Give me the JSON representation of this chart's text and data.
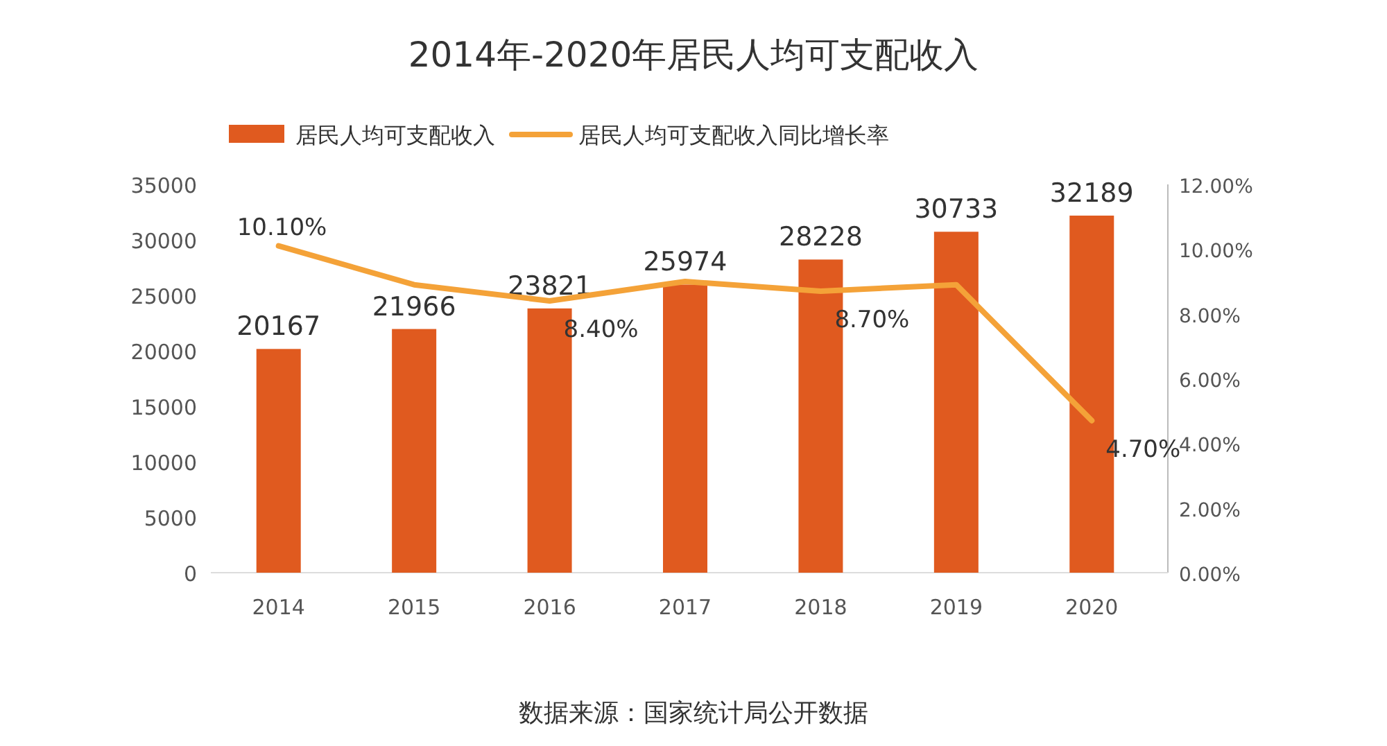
{
  "chart_data": {
    "type": "bar",
    "title": "2014年-2020年居民人均可支配收入",
    "categories": [
      "2014",
      "2015",
      "2016",
      "2017",
      "2018",
      "2019",
      "2020"
    ],
    "series": [
      {
        "name": "居民人均可支配收入",
        "color": "#e05a1f",
        "values": [
          20167,
          21966,
          23821,
          25974,
          28228,
          30733,
          32189
        ],
        "value_labels": [
          "20167",
          "21966",
          "23821",
          "25974",
          "28228",
          "30733",
          "32189"
        ]
      },
      {
        "name": "居民人均可支配收入同比增长率",
        "type": "line",
        "axis": "y2",
        "color": "#f4a238",
        "values": [
          10.1,
          8.9,
          8.4,
          9.0,
          8.7,
          8.9,
          4.7
        ],
        "value_labels": [
          "10.10%",
          null,
          "8.40%",
          null,
          "8.70%",
          null,
          "4.70%"
        ]
      }
    ],
    "ylim": [
      0,
      35000
    ],
    "yticks": [
      0,
      5000,
      10000,
      15000,
      20000,
      25000,
      30000,
      35000
    ],
    "y2lim": [
      0,
      12
    ],
    "y2ticks": [
      {
        "value": 0,
        "label": "0.00%"
      },
      {
        "value": 2,
        "label": "2.00%"
      },
      {
        "value": 4,
        "label": "4.00%"
      },
      {
        "value": 6,
        "label": "6.00%"
      },
      {
        "value": 8,
        "label": "8.00%"
      },
      {
        "value": 10,
        "label": "10.00%"
      },
      {
        "value": 12,
        "label": "12.00%"
      }
    ],
    "legend": "top",
    "grid": false,
    "marker": "none",
    "annotations": [
      "数据来源：国家统计局公开数据"
    ]
  }
}
